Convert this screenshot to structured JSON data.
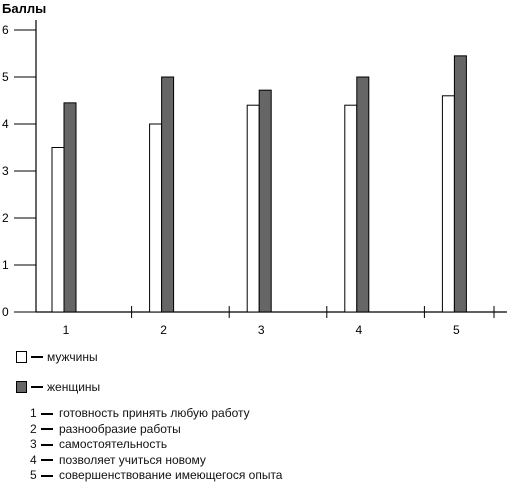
{
  "chart_data": {
    "type": "bar",
    "ylabel": "Баллы",
    "xlabel": "",
    "ylim": [
      0,
      6
    ],
    "yticks": [
      "0",
      "1",
      "2",
      "3",
      "4",
      "5",
      "6"
    ],
    "categories": [
      "1",
      "2",
      "3",
      "4",
      "5"
    ],
    "series": [
      {
        "name": "мужчины",
        "color": "#ffffff",
        "values": [
          3.5,
          4.0,
          4.4,
          4.4,
          4.6
        ]
      },
      {
        "name": "женщины",
        "color": "#666666",
        "values": [
          4.45,
          5.0,
          4.72,
          5.0,
          5.45
        ]
      }
    ],
    "grid": false
  },
  "legend": {
    "items": [
      {
        "label": "мужчины",
        "color": "#ffffff"
      },
      {
        "label": "женщины",
        "color": "#666666"
      }
    ]
  },
  "notes": [
    {
      "num": "1",
      "text": "готовность принять любую работу"
    },
    {
      "num": "2",
      "text": "разнообразие работы"
    },
    {
      "num": "3",
      "text": "самостоятельность"
    },
    {
      "num": "4",
      "text": "позволяет учиться новому"
    },
    {
      "num": "5",
      "text": "совершенствование имеющегося опыта"
    }
  ]
}
